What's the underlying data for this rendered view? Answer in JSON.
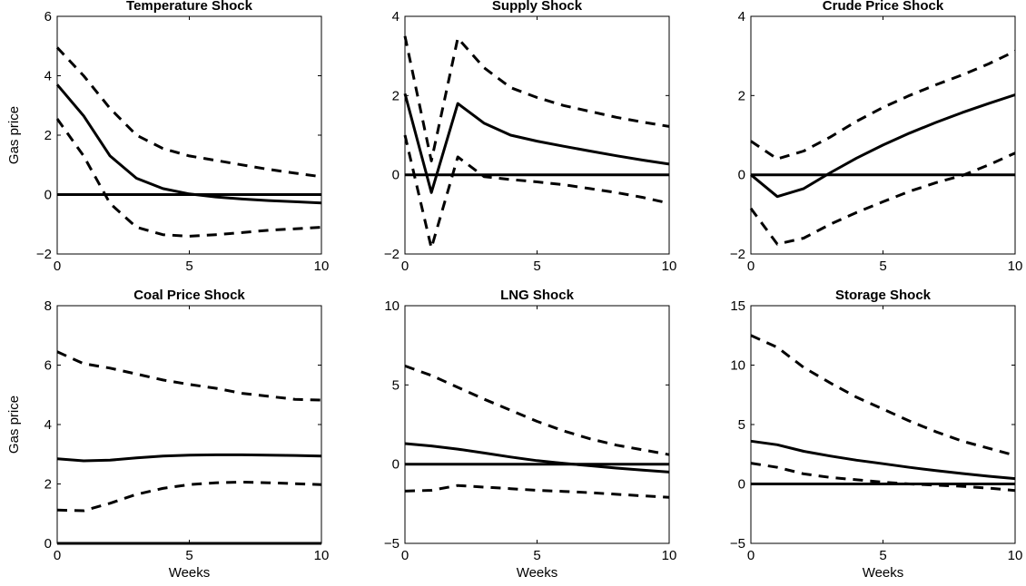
{
  "chart_data": [
    {
      "type": "line",
      "title": "Temperature Shock",
      "ylabel": "Gas price",
      "xlabel": "",
      "xlim": [
        0,
        10
      ],
      "ylim": [
        -2,
        6
      ],
      "xticks": [
        "0",
        "5",
        "10"
      ],
      "yticks": [
        "−2",
        "0",
        "2",
        "4",
        "6"
      ],
      "x": [
        0,
        1,
        2,
        3,
        4,
        5,
        6,
        7,
        8,
        9,
        10
      ],
      "series": [
        {
          "role": "response",
          "style": "solid",
          "values": [
            3.7,
            2.65,
            1.3,
            0.55,
            0.2,
            0.02,
            -0.08,
            -0.15,
            -0.2,
            -0.24,
            -0.28
          ]
        },
        {
          "role": "upper",
          "style": "dashed",
          "values": [
            4.95,
            4.0,
            2.9,
            2.0,
            1.55,
            1.3,
            1.15,
            1.0,
            0.85,
            0.72,
            0.6
          ]
        },
        {
          "role": "lower",
          "style": "dashed",
          "values": [
            2.55,
            1.3,
            -0.3,
            -1.1,
            -1.35,
            -1.4,
            -1.35,
            -1.28,
            -1.2,
            -1.15,
            -1.1
          ]
        },
        {
          "role": "zero",
          "style": "solid",
          "values": [
            0,
            0,
            0,
            0,
            0,
            0,
            0,
            0,
            0,
            0,
            0
          ]
        }
      ]
    },
    {
      "type": "line",
      "title": "Supply Shock",
      "ylabel": "",
      "xlabel": "",
      "xlim": [
        0,
        10
      ],
      "ylim": [
        -2,
        4
      ],
      "xticks": [
        "0",
        "5",
        "10"
      ],
      "yticks": [
        "−2",
        "0",
        "2",
        "4"
      ],
      "x": [
        0,
        1,
        2,
        3,
        4,
        5,
        6,
        7,
        8,
        9,
        10
      ],
      "series": [
        {
          "role": "response",
          "style": "solid",
          "values": [
            2.05,
            -0.45,
            1.8,
            1.3,
            1.0,
            0.85,
            0.72,
            0.6,
            0.48,
            0.37,
            0.27
          ]
        },
        {
          "role": "upper",
          "style": "dashed",
          "values": [
            3.5,
            0.35,
            3.45,
            2.7,
            2.2,
            1.95,
            1.75,
            1.6,
            1.45,
            1.33,
            1.22
          ]
        },
        {
          "role": "lower",
          "style": "dashed",
          "values": [
            1.0,
            -1.85,
            0.45,
            -0.05,
            -0.12,
            -0.18,
            -0.25,
            -0.35,
            -0.45,
            -0.57,
            -0.72
          ]
        },
        {
          "role": "zero",
          "style": "solid",
          "values": [
            0,
            0,
            0,
            0,
            0,
            0,
            0,
            0,
            0,
            0,
            0
          ]
        }
      ]
    },
    {
      "type": "line",
      "title": "Crude Price Shock",
      "ylabel": "",
      "xlabel": "",
      "xlim": [
        0,
        10
      ],
      "ylim": [
        -2,
        4
      ],
      "xticks": [
        "0",
        "5",
        "10"
      ],
      "yticks": [
        "−2",
        "0",
        "2",
        "4"
      ],
      "x": [
        0,
        1,
        2,
        3,
        4,
        5,
        6,
        7,
        8,
        9,
        10
      ],
      "series": [
        {
          "role": "response",
          "style": "solid",
          "values": [
            0.0,
            -0.55,
            -0.35,
            0.05,
            0.42,
            0.75,
            1.05,
            1.32,
            1.57,
            1.8,
            2.02
          ]
        },
        {
          "role": "upper",
          "style": "dashed",
          "values": [
            0.85,
            0.4,
            0.6,
            0.95,
            1.35,
            1.7,
            2.0,
            2.27,
            2.52,
            2.8,
            3.12
          ]
        },
        {
          "role": "lower",
          "style": "dashed",
          "values": [
            -0.85,
            -1.75,
            -1.6,
            -1.25,
            -0.95,
            -0.68,
            -0.42,
            -0.2,
            -0.02,
            0.25,
            0.55
          ]
        },
        {
          "role": "zero",
          "style": "solid",
          "values": [
            0,
            0,
            0,
            0,
            0,
            0,
            0,
            0,
            0,
            0,
            0
          ]
        }
      ]
    },
    {
      "type": "line",
      "title": "Coal Price Shock",
      "ylabel": "Gas price",
      "xlabel": "Weeks",
      "xlim": [
        0,
        10
      ],
      "ylim": [
        0,
        8
      ],
      "xticks": [
        "0",
        "5",
        "10"
      ],
      "yticks": [
        "0",
        "2",
        "4",
        "6",
        "8"
      ],
      "x": [
        0,
        1,
        2,
        3,
        4,
        5,
        6,
        7,
        8,
        9,
        10
      ],
      "series": [
        {
          "role": "response",
          "style": "solid",
          "values": [
            2.85,
            2.78,
            2.8,
            2.88,
            2.94,
            2.97,
            2.98,
            2.98,
            2.97,
            2.96,
            2.94
          ]
        },
        {
          "role": "upper",
          "style": "dashed",
          "values": [
            6.45,
            6.05,
            5.9,
            5.7,
            5.5,
            5.35,
            5.22,
            5.05,
            4.95,
            4.85,
            4.82
          ]
        },
        {
          "role": "lower",
          "style": "dashed",
          "values": [
            1.12,
            1.1,
            1.35,
            1.65,
            1.85,
            1.98,
            2.04,
            2.06,
            2.04,
            2.01,
            1.98
          ]
        },
        {
          "role": "zero",
          "style": "solid",
          "values": [
            0,
            0,
            0,
            0,
            0,
            0,
            0,
            0,
            0,
            0,
            0
          ]
        }
      ]
    },
    {
      "type": "line",
      "title": "LNG Shock",
      "ylabel": "",
      "xlabel": "Weeks",
      "xlim": [
        0,
        10
      ],
      "ylim": [
        -5,
        10
      ],
      "xticks": [
        "0",
        "5",
        "10"
      ],
      "yticks": [
        "−5",
        "0",
        "5",
        "10"
      ],
      "x": [
        0,
        1,
        2,
        3,
        4,
        5,
        6,
        7,
        8,
        9,
        10
      ],
      "series": [
        {
          "role": "response",
          "style": "solid",
          "values": [
            1.3,
            1.15,
            0.95,
            0.7,
            0.45,
            0.22,
            0.05,
            -0.1,
            -0.25,
            -0.38,
            -0.5
          ]
        },
        {
          "role": "upper",
          "style": "dashed",
          "values": [
            6.2,
            5.6,
            4.85,
            4.1,
            3.4,
            2.7,
            2.1,
            1.6,
            1.2,
            0.9,
            0.6
          ]
        },
        {
          "role": "lower",
          "style": "dashed",
          "values": [
            -1.7,
            -1.65,
            -1.35,
            -1.45,
            -1.55,
            -1.65,
            -1.72,
            -1.8,
            -1.9,
            -2.0,
            -2.1
          ]
        },
        {
          "role": "zero",
          "style": "solid",
          "values": [
            0,
            0,
            0,
            0,
            0,
            0,
            0,
            0,
            0,
            0,
            0
          ]
        }
      ]
    },
    {
      "type": "line",
      "title": "Storage Shock",
      "ylabel": "",
      "xlabel": "Weeks",
      "xlim": [
        0,
        10
      ],
      "ylim": [
        -5,
        15
      ],
      "xticks": [
        "0",
        "5",
        "10"
      ],
      "yticks": [
        "−5",
        "0",
        "5",
        "10",
        "15"
      ],
      "x": [
        0,
        1,
        2,
        3,
        4,
        5,
        6,
        7,
        8,
        9,
        10
      ],
      "series": [
        {
          "role": "response",
          "style": "solid",
          "values": [
            3.6,
            3.3,
            2.75,
            2.35,
            2.0,
            1.7,
            1.4,
            1.12,
            0.88,
            0.65,
            0.45
          ]
        },
        {
          "role": "upper",
          "style": "dashed",
          "values": [
            12.5,
            11.5,
            9.8,
            8.5,
            7.3,
            6.3,
            5.3,
            4.4,
            3.6,
            3.0,
            2.4
          ]
        },
        {
          "role": "lower",
          "style": "dashed",
          "values": [
            1.75,
            1.4,
            0.85,
            0.55,
            0.35,
            0.15,
            0.0,
            -0.1,
            -0.2,
            -0.35,
            -0.55
          ]
        },
        {
          "role": "zero",
          "style": "solid",
          "values": [
            0,
            0,
            0,
            0,
            0,
            0,
            0,
            0,
            0,
            0,
            0
          ]
        }
      ]
    }
  ]
}
